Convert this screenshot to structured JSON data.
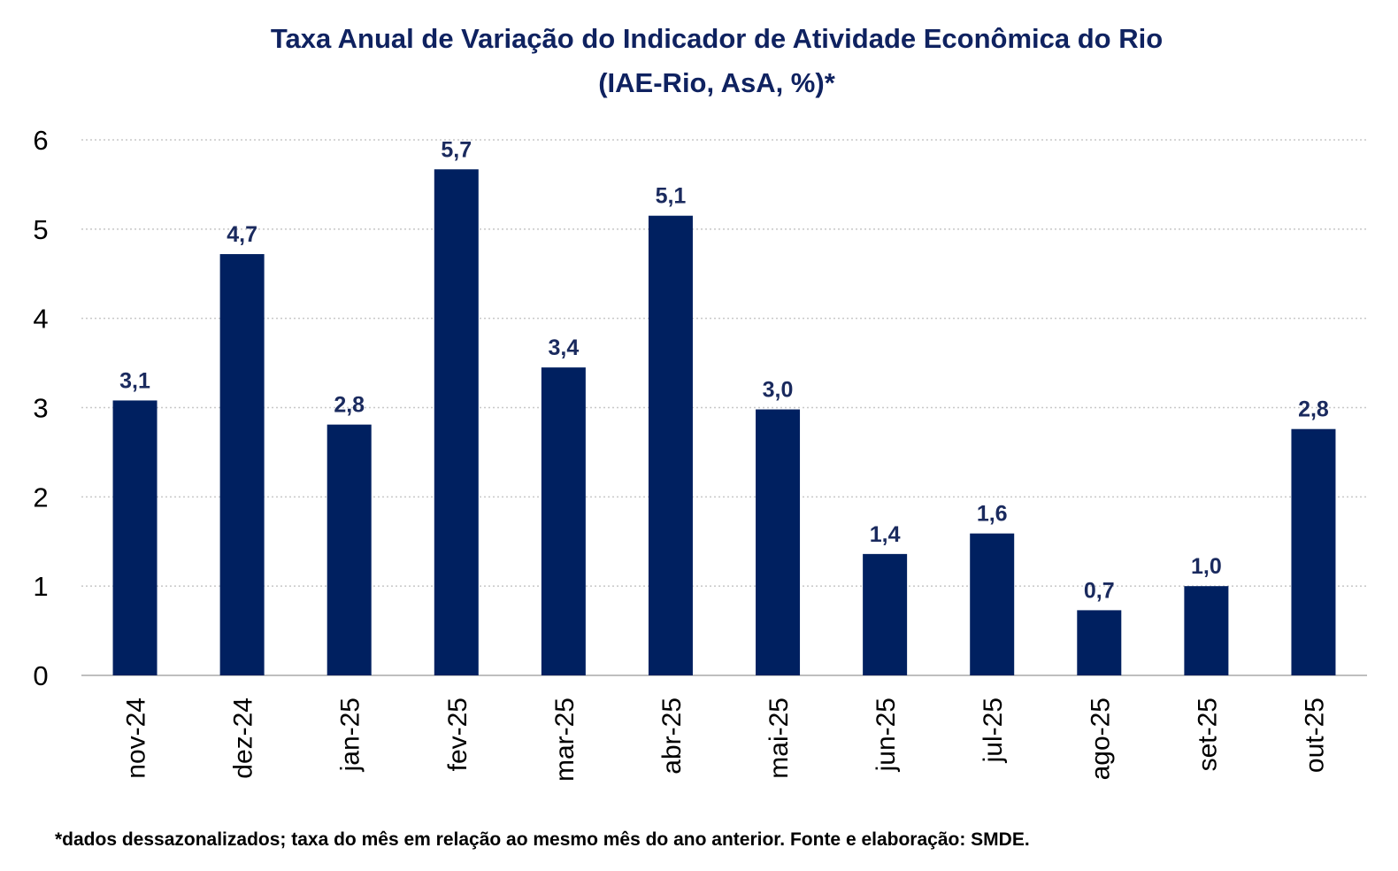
{
  "chart_data": {
    "type": "bar",
    "title": "Taxa Anual de Variação do Indicador de Atividade Econômica do Rio",
    "subtitle": "(IAE-Rio, AsA, %)*",
    "xlabel": "",
    "ylabel": "",
    "ylim": [
      0,
      6
    ],
    "yticks": [
      "0",
      "1",
      "2",
      "3",
      "4",
      "5",
      "6"
    ],
    "grid": true,
    "legend": "none",
    "bar_color": "#002060",
    "categories": [
      "nov-24",
      "dez-24",
      "jan-25",
      "fev-25",
      "mar-25",
      "abr-25",
      "mai-25",
      "jun-25",
      "jul-25",
      "ago-25",
      "set-25",
      "out-25"
    ],
    "values": [
      3.08,
      4.72,
      2.81,
      5.67,
      3.45,
      5.15,
      2.98,
      1.36,
      1.59,
      0.73,
      1.0,
      2.76
    ],
    "data_labels": [
      "3,1",
      "4,7",
      "2,8",
      "5,7",
      "3,4",
      "5,1",
      "3,0",
      "1,4",
      "1,6",
      "0,7",
      "1,0",
      "2,8"
    ],
    "footnote": "*dados dessazonalizados; taxa do mês em relação ao mesmo mês do ano anterior. Fonte e elaboração: SMDE."
  }
}
